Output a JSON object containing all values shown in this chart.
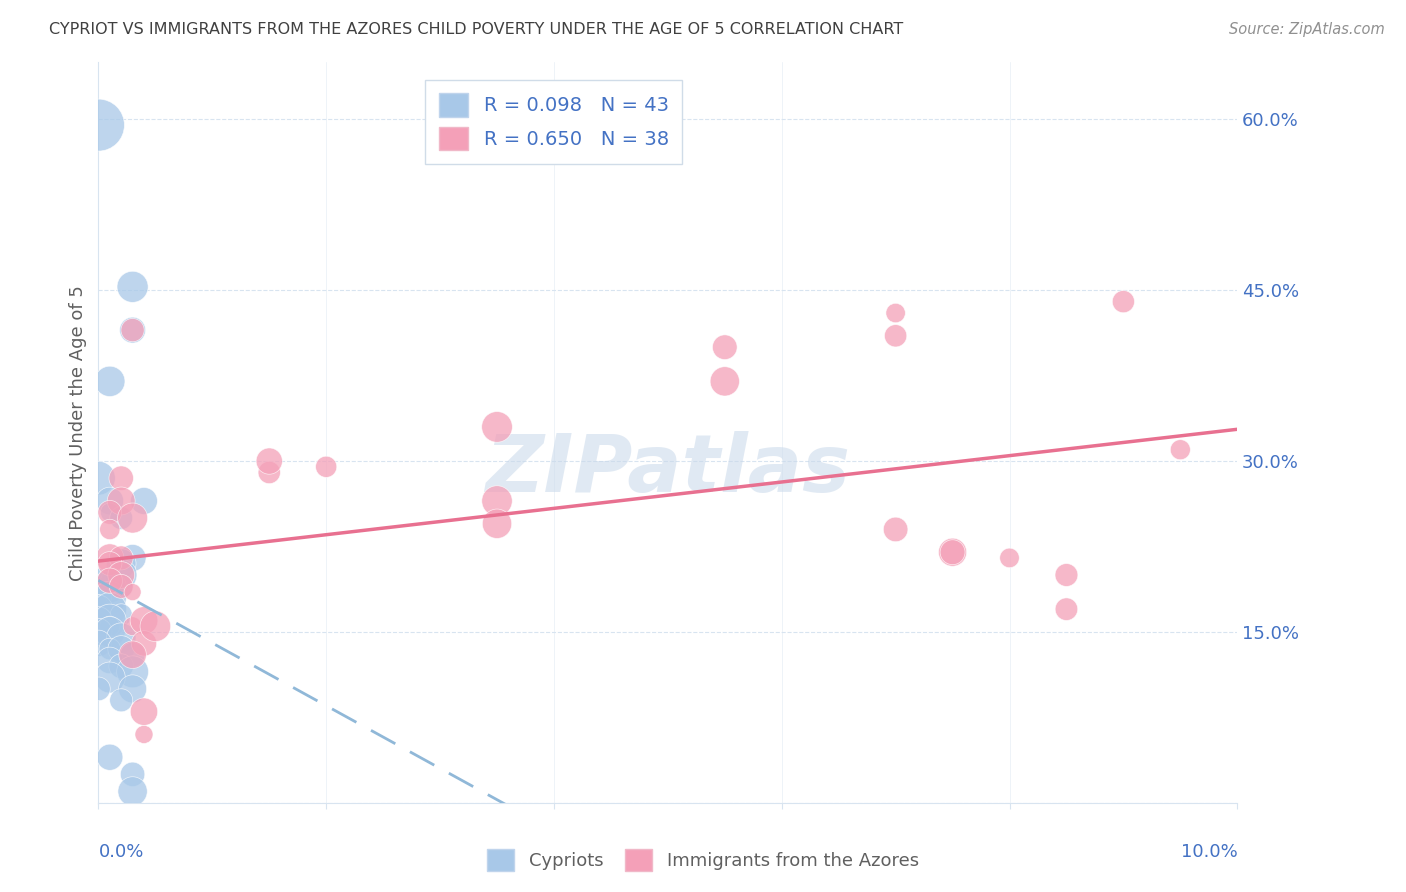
{
  "title": "CYPRIOT VS IMMIGRANTS FROM THE AZORES CHILD POVERTY UNDER THE AGE OF 5 CORRELATION CHART",
  "source": "Source: ZipAtlas.com",
  "ylabel": "Child Poverty Under the Age of 5",
  "y_ticks": [
    0.0,
    15.0,
    30.0,
    45.0,
    60.0
  ],
  "y_tick_labels": [
    "",
    "15.0%",
    "30.0%",
    "45.0%",
    "60.0%"
  ],
  "x_ticks": [
    0.0,
    2.0,
    4.0,
    6.0,
    8.0,
    10.0
  ],
  "x_range": [
    0.0,
    10.0
  ],
  "y_range": [
    0.0,
    65.0
  ],
  "legend_entries": [
    {
      "label": "R = 0.098   N = 43",
      "color": "#a8c8e8"
    },
    {
      "label": "R = 0.650   N = 38",
      "color": "#f4a0b8"
    }
  ],
  "watermark": "ZIPatlas",
  "watermark_color": "#c8d8ea",
  "cypriot_color": "#a8c8e8",
  "azores_color": "#f4a0b8",
  "cypriot_line_color": "#90b8d8",
  "azores_line_color": "#e87090",
  "grid_color": "#d8e4f0",
  "axis_color": "#d8e4f0",
  "text_color": "#4472c4",
  "title_color": "#404040",
  "source_color": "#909090",
  "ylabel_color": "#606060",
  "bottom_legend_color": "#606060",
  "cypriot_scatter": [
    [
      0.0,
      59.5
    ],
    [
      0.3,
      45.3
    ],
    [
      0.3,
      41.5
    ],
    [
      0.1,
      37.0
    ],
    [
      0.0,
      28.5
    ],
    [
      0.1,
      26.5
    ],
    [
      0.4,
      26.5
    ],
    [
      0.1,
      25.5
    ],
    [
      0.2,
      25.0
    ],
    [
      0.3,
      21.5
    ],
    [
      0.2,
      21.0
    ],
    [
      0.2,
      20.0
    ],
    [
      0.0,
      19.5
    ],
    [
      0.1,
      19.5
    ],
    [
      0.2,
      19.0
    ],
    [
      0.1,
      19.0
    ],
    [
      0.0,
      18.5
    ],
    [
      0.0,
      18.0
    ],
    [
      0.1,
      18.0
    ],
    [
      0.0,
      17.5
    ],
    [
      0.0,
      17.0
    ],
    [
      0.1,
      17.0
    ],
    [
      0.2,
      16.5
    ],
    [
      0.0,
      16.0
    ],
    [
      0.1,
      16.0
    ],
    [
      0.1,
      15.5
    ],
    [
      0.0,
      15.0
    ],
    [
      0.1,
      15.0
    ],
    [
      0.2,
      14.5
    ],
    [
      0.0,
      14.0
    ],
    [
      0.1,
      13.5
    ],
    [
      0.2,
      13.5
    ],
    [
      0.3,
      13.0
    ],
    [
      0.1,
      12.5
    ],
    [
      0.2,
      12.0
    ],
    [
      0.3,
      11.5
    ],
    [
      0.1,
      11.0
    ],
    [
      0.0,
      10.0
    ],
    [
      0.3,
      10.0
    ],
    [
      0.2,
      9.0
    ],
    [
      0.1,
      4.0
    ],
    [
      0.3,
      2.5
    ],
    [
      0.3,
      1.0
    ]
  ],
  "azores_scatter": [
    [
      0.3,
      41.5
    ],
    [
      0.2,
      28.5
    ],
    [
      0.2,
      26.5
    ],
    [
      0.1,
      25.5
    ],
    [
      0.3,
      25.0
    ],
    [
      0.1,
      24.0
    ],
    [
      0.1,
      21.5
    ],
    [
      0.2,
      21.5
    ],
    [
      0.1,
      21.0
    ],
    [
      0.2,
      20.0
    ],
    [
      0.1,
      19.5
    ],
    [
      0.2,
      19.0
    ],
    [
      0.3,
      18.5
    ],
    [
      0.3,
      15.5
    ],
    [
      0.4,
      16.0
    ],
    [
      0.4,
      14.0
    ],
    [
      0.3,
      13.0
    ],
    [
      0.5,
      15.5
    ],
    [
      0.4,
      8.0
    ],
    [
      0.4,
      6.0
    ],
    [
      1.5,
      29.0
    ],
    [
      1.5,
      30.0
    ],
    [
      2.0,
      29.5
    ],
    [
      3.5,
      33.0
    ],
    [
      3.5,
      26.5
    ],
    [
      3.5,
      24.5
    ],
    [
      5.5,
      40.0
    ],
    [
      5.5,
      37.0
    ],
    [
      7.0,
      43.0
    ],
    [
      7.0,
      41.0
    ],
    [
      7.0,
      24.0
    ],
    [
      7.5,
      22.0
    ],
    [
      7.5,
      22.0
    ],
    [
      8.0,
      21.5
    ],
    [
      8.5,
      20.0
    ],
    [
      8.5,
      17.0
    ],
    [
      9.0,
      44.0
    ],
    [
      9.5,
      31.0
    ]
  ]
}
